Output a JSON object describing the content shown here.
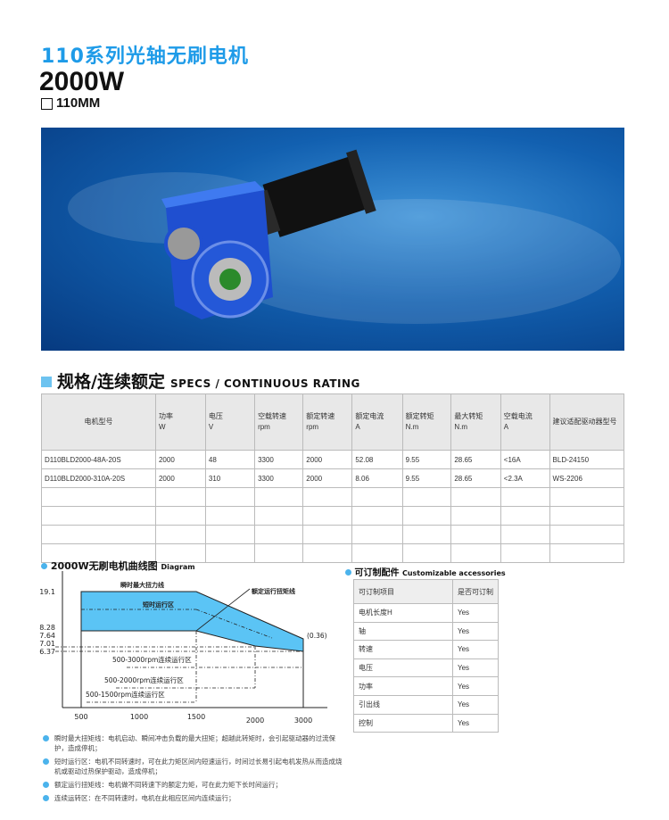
{
  "header": {
    "title": "110系列光轴无刷电机",
    "power": "2000W",
    "size": "110MM"
  },
  "specs": {
    "title_cn": "规格/连续额定",
    "title_en": "SPECS / CONTINUOUS RATING",
    "columns": [
      [
        "电机型号",
        ""
      ],
      [
        "功率",
        "W"
      ],
      [
        "电压",
        "V"
      ],
      [
        "空载转速",
        "rpm"
      ],
      [
        "额定转速",
        "rpm"
      ],
      [
        "额定电流",
        "A"
      ],
      [
        "额定转矩",
        "N.m"
      ],
      [
        "最大转矩",
        "N.m"
      ],
      [
        "空载电流",
        "A"
      ],
      [
        "建议适配驱动器型号",
        ""
      ]
    ],
    "rows": [
      [
        "D110BLD2000-48A-20S",
        "2000",
        "48",
        "3300",
        "2000",
        "52.08",
        "9.55",
        "28.65",
        "<16A",
        "BLD-24150"
      ],
      [
        "D110BLD2000-310A-20S",
        "2000",
        "310",
        "3300",
        "2000",
        "8.06",
        "9.55",
        "28.65",
        "<2.3A",
        "WS-2206"
      ],
      [
        "",
        "",
        "",
        "",
        "",
        "",
        "",
        "",
        "",
        ""
      ],
      [
        "",
        "",
        "",
        "",
        "",
        "",
        "",
        "",
        "",
        ""
      ],
      [
        "",
        "",
        "",
        "",
        "",
        "",
        "",
        "",
        "",
        ""
      ],
      [
        "",
        "",
        "",
        "",
        "",
        "",
        "",
        "",
        "",
        ""
      ]
    ]
  },
  "diagram": {
    "title_cn": "2000W无刷电机曲线图",
    "title_en": "Diagram",
    "y_ticks": [
      "19.1",
      "8.28",
      "7.64",
      "7.01",
      "6.37"
    ],
    "x_ticks": [
      "500",
      "1000",
      "1500",
      "2000",
      "3000"
    ],
    "labels": {
      "peak": "瞬时最大扭力线",
      "short": "短时运行区",
      "rated": "额定运行扭矩线",
      "end": "(0.36)",
      "z3000": "500-3000rpm连续运行区",
      "z2000": "500-2000rpm连续运行区",
      "z1500": "500-1500rpm连续运行区"
    },
    "fill_color": "#5bc4f5"
  },
  "notes": [
    "瞬时最大扭矩线：电机启动、瞬间冲击负载的最大扭矩；超越此转矩时，会引起驱动器的过流保护，造成停机；",
    "短时运行区：电机不同转速时，可在此力矩区间内短速运行，时间过长易引起电机发热从而造成烧机或驱动过热保护驱动，造成停机；",
    "额定运行扭矩线：电机做不同转速下的额定力矩，可在此力矩下长时间运行；",
    "连续运转区：在不同转速时，电机在此相应区间内连续运行；"
  ],
  "accessories": {
    "title_cn": "可订制配件",
    "title_en": "Customizable accessories",
    "header": [
      "可订制项目",
      "是否可订制"
    ],
    "rows": [
      [
        "电机长度H",
        "Yes"
      ],
      [
        "轴",
        "Yes"
      ],
      [
        "转速",
        "Yes"
      ],
      [
        "电压",
        "Yes"
      ],
      [
        "功率",
        "Yes"
      ],
      [
        "引出线",
        "Yes"
      ],
      [
        "控制",
        "Yes"
      ]
    ]
  },
  "accent": "#1e9be8"
}
